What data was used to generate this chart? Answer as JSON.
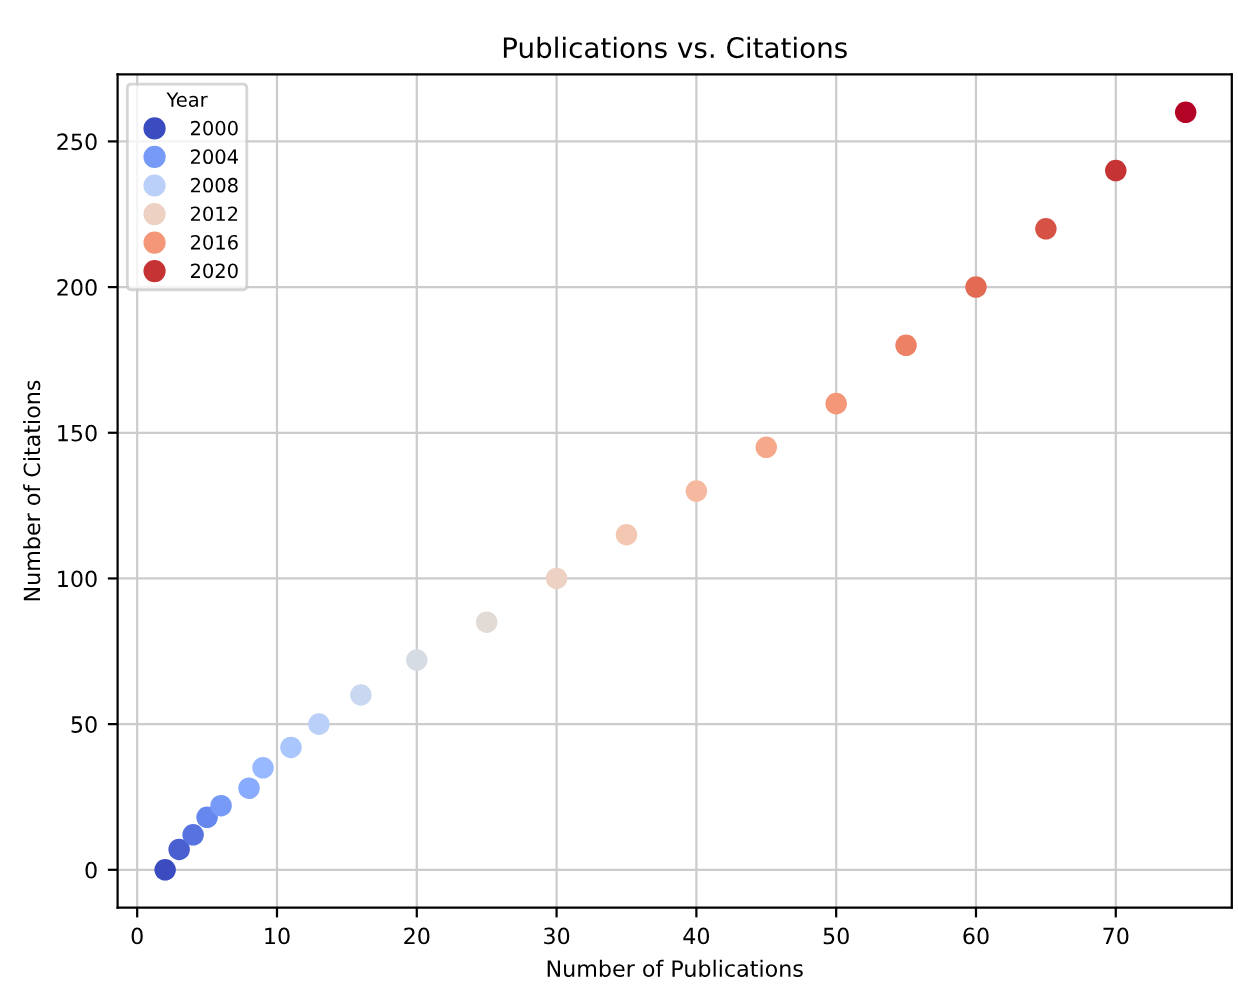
{
  "chart_data": {
    "type": "scatter",
    "title": "Publications vs. Citations",
    "xlabel": "Number of Publications",
    "ylabel": "Number of Citations",
    "legend_title": "Year",
    "series": [
      {
        "name": "2000",
        "color": "#3b4cc0",
        "x": [
          2
        ],
        "values": [
          0
        ]
      },
      {
        "color": "#4a5fd0",
        "x": [
          3
        ],
        "values": [
          7
        ]
      },
      {
        "color": "#5673e0",
        "x": [
          4
        ],
        "values": [
          12
        ]
      },
      {
        "color": "#6687ed",
        "x": [
          5
        ],
        "values": [
          18
        ]
      },
      {
        "name": "2004",
        "color": "#779af7",
        "x": [
          6
        ],
        "values": [
          22
        ]
      },
      {
        "color": "#88abfd",
        "x": [
          8
        ],
        "values": [
          28
        ]
      },
      {
        "color": "#98b9ff",
        "x": [
          9
        ],
        "values": [
          35
        ]
      },
      {
        "color": "#a9c6fd",
        "x": [
          11
        ],
        "values": [
          42
        ]
      },
      {
        "name": "2008",
        "color": "#bad0f8",
        "x": [
          13
        ],
        "values": [
          50
        ]
      },
      {
        "color": "#c9d7f0",
        "x": [
          16
        ],
        "values": [
          60
        ]
      },
      {
        "color": "#d6dce4",
        "x": [
          20
        ],
        "values": [
          72
        ]
      },
      {
        "color": "#e2dad5",
        "x": [
          25
        ],
        "values": [
          85
        ]
      },
      {
        "name": "2012",
        "color": "#edd1c2",
        "x": [
          30
        ],
        "values": [
          100
        ]
      },
      {
        "color": "#f3c7b1",
        "x": [
          35
        ],
        "values": [
          115
        ]
      },
      {
        "color": "#f6b89e",
        "x": [
          40
        ],
        "values": [
          130
        ]
      },
      {
        "color": "#f5a98a",
        "x": [
          45
        ],
        "values": [
          145
        ]
      },
      {
        "name": "2016",
        "color": "#f39778",
        "x": [
          50
        ],
        "values": [
          160
        ]
      },
      {
        "color": "#ec8165",
        "x": [
          55
        ],
        "values": [
          180
        ]
      },
      {
        "color": "#e36b54",
        "x": [
          60
        ],
        "values": [
          200
        ]
      },
      {
        "color": "#d65244",
        "x": [
          65
        ],
        "values": [
          220
        ]
      },
      {
        "name": "2020",
        "color": "#c53334",
        "x": [
          70
        ],
        "values": [
          240
        ]
      },
      {
        "color": "#b40426",
        "x": [
          75
        ],
        "values": [
          260
        ]
      }
    ],
    "xlim": [
      -1.4,
      78.3
    ],
    "ylim": [
      -13,
      273
    ],
    "xticks": [
      0,
      10,
      20,
      30,
      40,
      50,
      60,
      70
    ],
    "yticks": [
      0,
      50,
      100,
      150,
      200,
      250
    ],
    "grid": true,
    "legend": "top left",
    "marker": "circle"
  }
}
